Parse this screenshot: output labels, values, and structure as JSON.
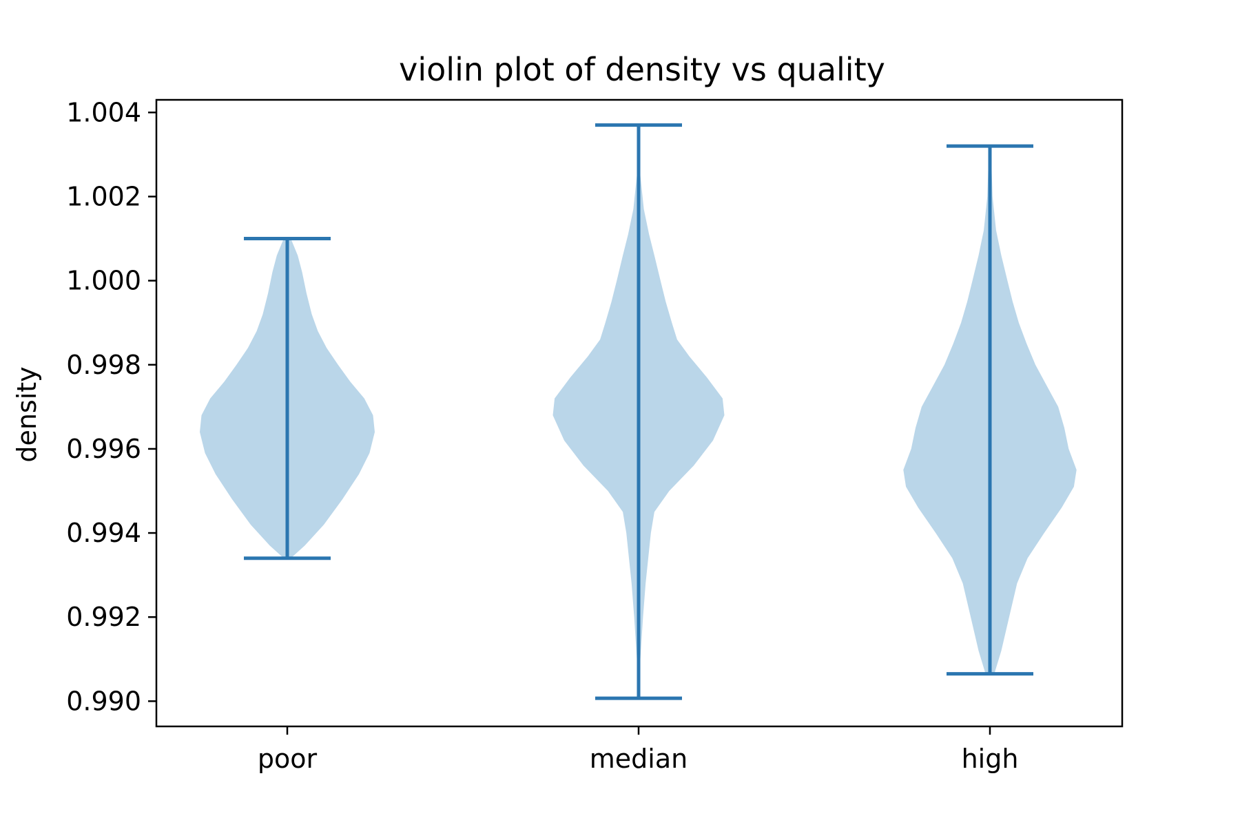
{
  "chart_data": {
    "type": "violin",
    "title": "violin plot of density vs quality",
    "xlabel": "",
    "ylabel": "density",
    "categories": [
      "poor",
      "median",
      "high"
    ],
    "ylim": [
      0.9894,
      1.0043
    ],
    "yticks": [
      "0.990",
      "0.992",
      "0.994",
      "0.996",
      "0.998",
      "1.000",
      "1.002",
      "1.004"
    ],
    "grid": false,
    "series": [
      {
        "category": "poor",
        "min": 0.9934,
        "max": 1.001,
        "profile": [
          [
            0.9934,
            0.04
          ],
          [
            0.9937,
            0.2
          ],
          [
            0.9942,
            0.42
          ],
          [
            0.9948,
            0.63
          ],
          [
            0.9954,
            0.82
          ],
          [
            0.9959,
            0.94
          ],
          [
            0.9964,
            1.0
          ],
          [
            0.9968,
            0.98
          ],
          [
            0.9972,
            0.88
          ],
          [
            0.9976,
            0.72
          ],
          [
            0.998,
            0.58
          ],
          [
            0.9984,
            0.45
          ],
          [
            0.9988,
            0.35
          ],
          [
            0.9992,
            0.28
          ],
          [
            0.9997,
            0.22
          ],
          [
            1.0002,
            0.17
          ],
          [
            1.0006,
            0.12
          ],
          [
            1.001,
            0.04
          ]
        ]
      },
      {
        "category": "median",
        "min": 0.99007,
        "max": 1.0037,
        "profile": [
          [
            0.99007,
            0.01
          ],
          [
            0.991,
            0.02
          ],
          [
            0.992,
            0.05
          ],
          [
            0.9928,
            0.08
          ],
          [
            0.9934,
            0.11
          ],
          [
            0.994,
            0.14
          ],
          [
            0.9945,
            0.18
          ],
          [
            0.995,
            0.35
          ],
          [
            0.9956,
            0.63
          ],
          [
            0.9962,
            0.85
          ],
          [
            0.9968,
            0.98
          ],
          [
            0.9972,
            0.96
          ],
          [
            0.9977,
            0.78
          ],
          [
            0.9982,
            0.58
          ],
          [
            0.9986,
            0.44
          ],
          [
            0.999,
            0.38
          ],
          [
            0.9995,
            0.31
          ],
          [
            1.0,
            0.25
          ],
          [
            1.0006,
            0.18
          ],
          [
            1.0011,
            0.12
          ],
          [
            1.0017,
            0.06
          ],
          [
            1.0025,
            0.02
          ],
          [
            1.0037,
            0.01
          ]
        ]
      },
      {
        "category": "high",
        "min": 0.99065,
        "max": 1.0032,
        "profile": [
          [
            0.99065,
            0.05
          ],
          [
            0.9912,
            0.13
          ],
          [
            0.992,
            0.22
          ],
          [
            0.9928,
            0.31
          ],
          [
            0.9934,
            0.43
          ],
          [
            0.994,
            0.62
          ],
          [
            0.9946,
            0.82
          ],
          [
            0.9951,
            0.96
          ],
          [
            0.9955,
            0.99
          ],
          [
            0.996,
            0.9
          ],
          [
            0.9965,
            0.85
          ],
          [
            0.997,
            0.78
          ],
          [
            0.9975,
            0.65
          ],
          [
            0.998,
            0.52
          ],
          [
            0.9985,
            0.42
          ],
          [
            0.999,
            0.33
          ],
          [
            0.9995,
            0.26
          ],
          [
            1.0,
            0.2
          ],
          [
            1.0006,
            0.13
          ],
          [
            1.0012,
            0.07
          ],
          [
            1.002,
            0.03
          ],
          [
            1.0032,
            0.01
          ]
        ]
      }
    ],
    "colors": {
      "body": "#bad6e9",
      "lines": "#2b76b0",
      "axes": "#000000"
    }
  }
}
